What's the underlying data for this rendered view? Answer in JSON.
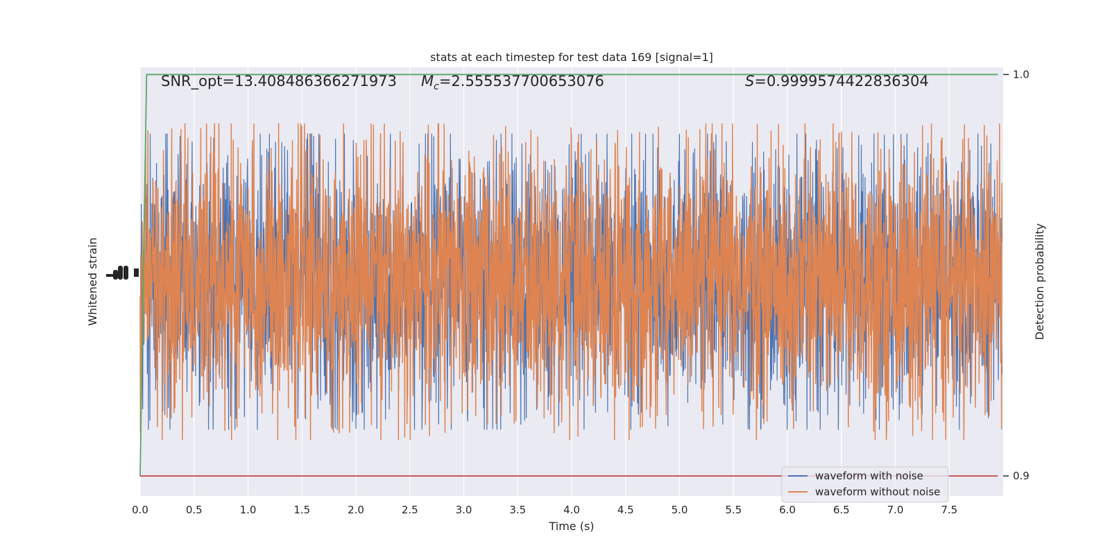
{
  "chart_data": {
    "type": "line",
    "title": "stats at each timestep for test data 169 [signal=1]",
    "xlabel": "Time (s)",
    "ylabel": "Whitened strain",
    "ylabel_right": "Detection probability",
    "xlim": [
      0.0,
      8.0
    ],
    "xticks": [
      "0.0",
      "0.5",
      "1.0",
      "1.5",
      "2.0",
      "2.5",
      "3.0",
      "3.5",
      "4.0",
      "4.5",
      "5.0",
      "5.5",
      "6.0",
      "6.5",
      "7.0",
      "7.5"
    ],
    "xtick_values": [
      0.0,
      0.5,
      1.0,
      1.5,
      2.0,
      2.5,
      3.0,
      3.5,
      4.0,
      4.5,
      5.0,
      5.5,
      6.0,
      6.5,
      7.0,
      7.5
    ],
    "right_axis": {
      "ylim": [
        0.895,
        1.0018
      ],
      "ticks": [
        "0.9",
        "1.0"
      ],
      "tick_values": [
        0.9,
        1.0
      ]
    },
    "left_axis": {
      "ylim": [
        -4.2,
        4.2
      ]
    },
    "annotations": {
      "snr": "SNR_opt=13.408486366271973",
      "mc_symbol": "M",
      "mc_subscript": "c",
      "mc_value": "=2.555537700653076",
      "s_symbol": "S",
      "s_value": "=0.9999574422836304"
    },
    "series": [
      {
        "name": "waveform with noise",
        "color": "#4c72b0",
        "axis": "left",
        "description_values": "dense noise, amplitude about ±3, 8 s at high sample rate"
      },
      {
        "name": "waveform without noise",
        "color": "#dd8452",
        "axis": "left",
        "amplitude_typical": 1.4,
        "amplitude_peak": 3.1
      },
      {
        "axis": "right",
        "color": "#55a868",
        "x": [
          0.0,
          0.06,
          7.95
        ],
        "values": [
          0.9,
          1.0,
          1.0
        ]
      },
      {
        "axis": "right",
        "color": "#c44e52",
        "x": [
          0.0,
          7.95
        ],
        "values": [
          0.9,
          0.9
        ]
      }
    ],
    "legend": {
      "placement": "lower-right",
      "entries": [
        "waveform with noise",
        "waveform without noise"
      ]
    },
    "grid": true
  },
  "colors": {
    "axes_background": "#eaeaf2",
    "grid": "#ffffff",
    "text": "#262626"
  }
}
